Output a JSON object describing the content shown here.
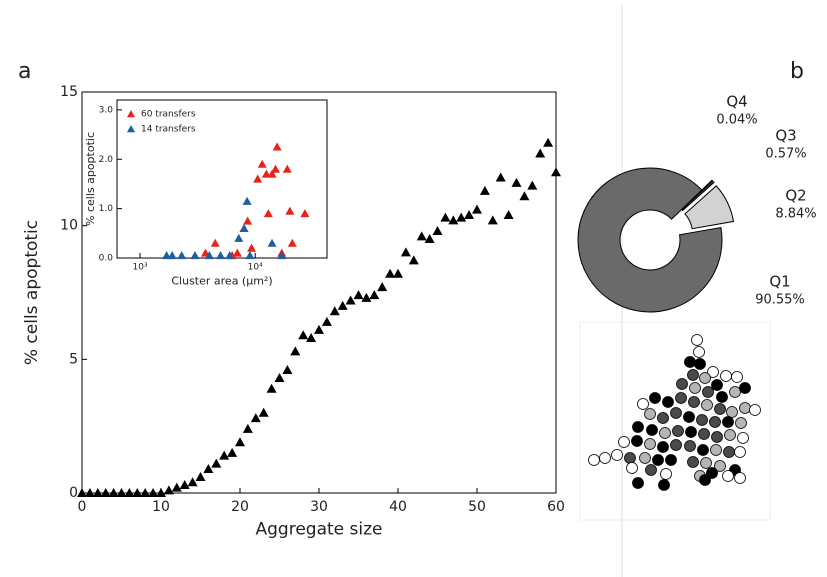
{
  "panel_labels": [
    "a",
    "b"
  ],
  "chart_data": [
    {
      "type": "scatter",
      "xlabel": "Aggregate size",
      "ylabel": "% cells apoptotic",
      "marker": "triangle",
      "color": "#000000",
      "x": [
        0,
        1,
        2,
        3,
        4,
        5,
        6,
        7,
        8,
        9,
        10,
        11,
        12,
        13,
        14,
        15,
        16,
        17,
        18,
        19,
        20,
        21,
        22,
        23,
        24,
        25,
        26,
        27,
        28,
        29,
        30,
        31,
        32,
        33,
        34,
        35,
        36,
        37,
        38,
        39,
        40,
        41,
        42,
        43,
        44,
        45,
        46,
        47,
        48,
        49,
        50,
        51,
        52,
        53,
        54,
        55,
        56,
        57,
        58,
        59,
        60
      ],
      "values": [
        0,
        0,
        0,
        0,
        0,
        0,
        0,
        0,
        0,
        0,
        0,
        0.1,
        0.2,
        0.3,
        0.4,
        0.6,
        0.9,
        1.1,
        1.4,
        1.5,
        1.9,
        2.4,
        2.8,
        3.0,
        3.9,
        4.3,
        4.6,
        5.3,
        5.9,
        5.8,
        6.1,
        6.4,
        6.8,
        7.0,
        7.2,
        7.4,
        7.3,
        7.4,
        7.7,
        8.2,
        8.2,
        9.0,
        8.7,
        9.6,
        9.5,
        9.8,
        10.3,
        10.2,
        10.3,
        10.4,
        10.6,
        11.3,
        10.2,
        11.8,
        10.4,
        11.6,
        11.1,
        11.5,
        12.7,
        13.1,
        12.0
      ],
      "xlim": [
        0,
        60
      ],
      "xticks": [
        0,
        10,
        20,
        30,
        40,
        50,
        60
      ],
      "ylim": [
        0,
        15
      ],
      "yticks": [
        0,
        5,
        10,
        15
      ]
    },
    {
      "type": "scatter",
      "xlabel": "Cluster area (µm²)",
      "ylabel": "% cells apoptotic",
      "xscale": "log",
      "marker": "triangle",
      "xlim": [
        631,
        42000
      ],
      "xticks": [
        {
          "value": 1000,
          "label": "10³"
        },
        {
          "value": 10000,
          "label": "10⁴"
        }
      ],
      "ylim": [
        0,
        3.2
      ],
      "yticks": [
        {
          "value": 0,
          "label": "0.0"
        },
        {
          "value": 1,
          "label": "1.0"
        },
        {
          "value": 2,
          "label": "2.0"
        },
        {
          "value": 3,
          "label": "3.0"
        }
      ],
      "legend": "upper-left",
      "series": [
        {
          "name": "60 transfers",
          "color": "#e8231b",
          "x": [
            3700,
            4500,
            6300,
            7000,
            8000,
            8600,
            9300,
            10500,
            11500,
            12500,
            13000,
            14000,
            15000,
            15500,
            17000,
            19000,
            20000,
            21000,
            27000
          ],
          "values": [
            0.1,
            0.3,
            0.05,
            0.1,
            0.6,
            0.75,
            0.2,
            1.6,
            1.9,
            1.7,
            0.9,
            1.7,
            1.8,
            2.25,
            0.1,
            1.8,
            0.95,
            0.3,
            0.9
          ]
        },
        {
          "name": "14 transfers",
          "color": "#1f5fa0",
          "x": [
            1700,
            1900,
            2300,
            3000,
            4000,
            5000,
            6000,
            7200,
            8000,
            8500,
            9000,
            14000,
            17000
          ],
          "values": [
            0.05,
            0.05,
            0.05,
            0.05,
            0.05,
            0.05,
            0.05,
            0.4,
            0.6,
            1.15,
            0.05,
            0.3,
            0.05
          ]
        }
      ]
    },
    {
      "type": "donut",
      "categories": [
        "Q1",
        "Q2",
        "Q3",
        "Q4"
      ],
      "values": [
        90.55,
        8.84,
        0.57,
        0.04
      ],
      "value_labels": [
        "90.55%",
        "8.84%",
        "0.57%",
        "0.04%"
      ],
      "colors": [
        "#6a6a6a",
        "#d2d2d2",
        "#333333",
        "#111111"
      ],
      "explode": [
        false,
        true,
        true,
        true
      ]
    }
  ]
}
